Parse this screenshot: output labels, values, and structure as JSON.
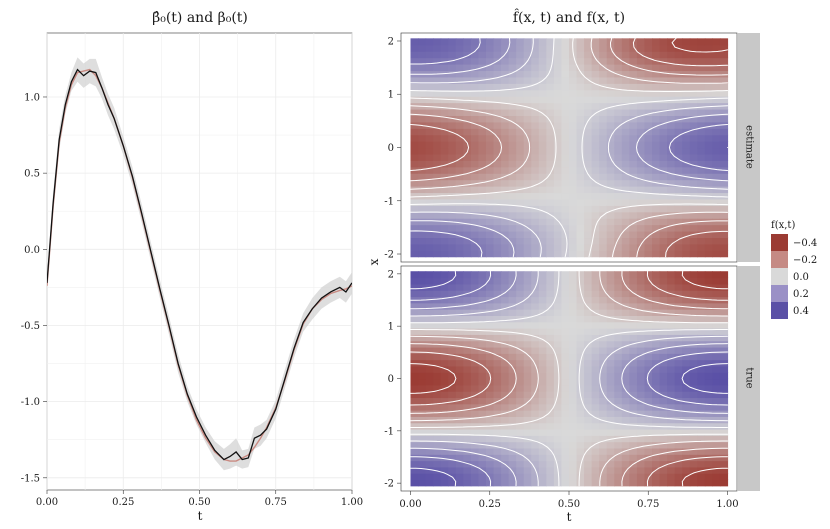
{
  "chart_data": [
    {
      "type": "line",
      "title": "β̂₀(t)  and  β₀(t)",
      "xlabel": "t",
      "ylabel": "",
      "xlim": [
        0,
        1
      ],
      "ylim": [
        -1.58,
        1.42
      ],
      "xticks": [
        "0.00",
        "0.25",
        "0.50",
        "0.75",
        "1.00"
      ],
      "xtick_values": [
        0,
        0.25,
        0.5,
        0.75,
        1.0
      ],
      "yticks": [
        "-1.5",
        "-1.0",
        "-0.5",
        "0.0",
        "0.5",
        "1.0"
      ],
      "ytick_values": [
        -1.5,
        -1.0,
        -0.5,
        0.0,
        0.5,
        1.0
      ],
      "series": [
        {
          "name": "estimate",
          "color": "#111111",
          "band_color": "#d3d3d3",
          "x": [
            0.0,
            0.02,
            0.04,
            0.06,
            0.08,
            0.1,
            0.12,
            0.14,
            0.16,
            0.18,
            0.2,
            0.22,
            0.25,
            0.28,
            0.31,
            0.34,
            0.37,
            0.4,
            0.43,
            0.46,
            0.49,
            0.52,
            0.55,
            0.58,
            0.6,
            0.62,
            0.64,
            0.66,
            0.68,
            0.7,
            0.72,
            0.75,
            0.78,
            0.81,
            0.84,
            0.87,
            0.9,
            0.93,
            0.96,
            0.98,
            1.0
          ],
          "values": [
            -0.22,
            0.3,
            0.72,
            0.95,
            1.1,
            1.18,
            1.14,
            1.17,
            1.16,
            1.06,
            0.95,
            0.86,
            0.68,
            0.48,
            0.24,
            -0.01,
            -0.26,
            -0.5,
            -0.75,
            -0.95,
            -1.1,
            -1.22,
            -1.32,
            -1.38,
            -1.36,
            -1.33,
            -1.38,
            -1.37,
            -1.24,
            -1.22,
            -1.18,
            -1.05,
            -0.85,
            -0.65,
            -0.48,
            -0.39,
            -0.32,
            -0.28,
            -0.25,
            -0.28,
            -0.22
          ],
          "lower": [
            -0.27,
            0.23,
            0.65,
            0.89,
            1.04,
            1.1,
            1.06,
            1.09,
            1.07,
            0.99,
            0.88,
            0.79,
            0.62,
            0.42,
            0.18,
            -0.07,
            -0.32,
            -0.56,
            -0.81,
            -1.0,
            -1.15,
            -1.27,
            -1.38,
            -1.45,
            -1.44,
            -1.42,
            -1.44,
            -1.43,
            -1.31,
            -1.29,
            -1.24,
            -1.11,
            -0.91,
            -0.71,
            -0.54,
            -0.46,
            -0.39,
            -0.35,
            -0.32,
            -0.35,
            -0.29
          ],
          "upper": [
            -0.17,
            0.37,
            0.79,
            1.01,
            1.16,
            1.26,
            1.22,
            1.25,
            1.25,
            1.13,
            1.02,
            0.93,
            0.74,
            0.54,
            0.3,
            0.05,
            -0.2,
            -0.44,
            -0.69,
            -0.9,
            -1.05,
            -1.17,
            -1.26,
            -1.31,
            -1.28,
            -1.24,
            -1.32,
            -1.31,
            -1.17,
            -1.15,
            -1.12,
            -0.99,
            -0.79,
            -0.59,
            -0.42,
            -0.32,
            -0.25,
            -0.21,
            -0.18,
            -0.21,
            -0.15
          ]
        },
        {
          "name": "true",
          "color": "#c98a82",
          "x": [
            0.0,
            0.02,
            0.04,
            0.06,
            0.08,
            0.1,
            0.12,
            0.14,
            0.16,
            0.18,
            0.2,
            0.22,
            0.25,
            0.28,
            0.31,
            0.34,
            0.37,
            0.4,
            0.43,
            0.46,
            0.49,
            0.52,
            0.55,
            0.58,
            0.6,
            0.62,
            0.64,
            0.66,
            0.68,
            0.7,
            0.72,
            0.75,
            0.78,
            0.81,
            0.84,
            0.87,
            0.9,
            0.93,
            0.96,
            0.98,
            1.0
          ],
          "values": [
            -0.24,
            0.28,
            0.7,
            0.93,
            1.08,
            1.16,
            1.17,
            1.18,
            1.14,
            1.06,
            0.96,
            0.86,
            0.68,
            0.47,
            0.23,
            -0.02,
            -0.27,
            -0.51,
            -0.76,
            -0.96,
            -1.12,
            -1.24,
            -1.33,
            -1.38,
            -1.39,
            -1.39,
            -1.37,
            -1.35,
            -1.3,
            -1.24,
            -1.17,
            -1.04,
            -0.86,
            -0.66,
            -0.49,
            -0.39,
            -0.33,
            -0.29,
            -0.27,
            -0.26,
            -0.24
          ]
        }
      ]
    },
    {
      "type": "heatmap",
      "title": "f̂(x, t)  and  f(x, t)",
      "xlabel": "t",
      "ylabel": "x",
      "xlim": [
        -0.03,
        1.03
      ],
      "ylim": [
        -2.15,
        2.15
      ],
      "xticks": [
        "0.00",
        "0.25",
        "0.50",
        "0.75",
        "1.00"
      ],
      "xtick_values": [
        0,
        0.25,
        0.5,
        0.75,
        1.0
      ],
      "yticks": [
        "-2",
        "-1",
        "0",
        "1",
        "2"
      ],
      "ytick_values": [
        -2,
        -1,
        0,
        1,
        2
      ],
      "panels": [
        {
          "label": "estimate",
          "model": "estimate"
        },
        {
          "label": "true",
          "model": "true"
        }
      ],
      "legend": {
        "title": "f(x,t)",
        "labels": [
          "−0.4",
          "−0.2",
          "0.0",
          "0.2",
          "0.4"
        ],
        "values": [
          -0.4,
          -0.2,
          0.0,
          0.2,
          0.4
        ],
        "colors": [
          "#9b3b33",
          "#c58a84",
          "#d9d9d9",
          "#9a90c6",
          "#5a50a6"
        ]
      },
      "color_scale": {
        "low": "#9b3b33",
        "mid": "#d9d9d9",
        "high": "#5a50a6",
        "limits": [
          -0.5,
          0.5
        ]
      },
      "contour_levels": [
        -0.45,
        -0.35,
        -0.25,
        -0.15,
        -0.05,
        0.05,
        0.15,
        0.25,
        0.35,
        0.45
      ]
    }
  ]
}
